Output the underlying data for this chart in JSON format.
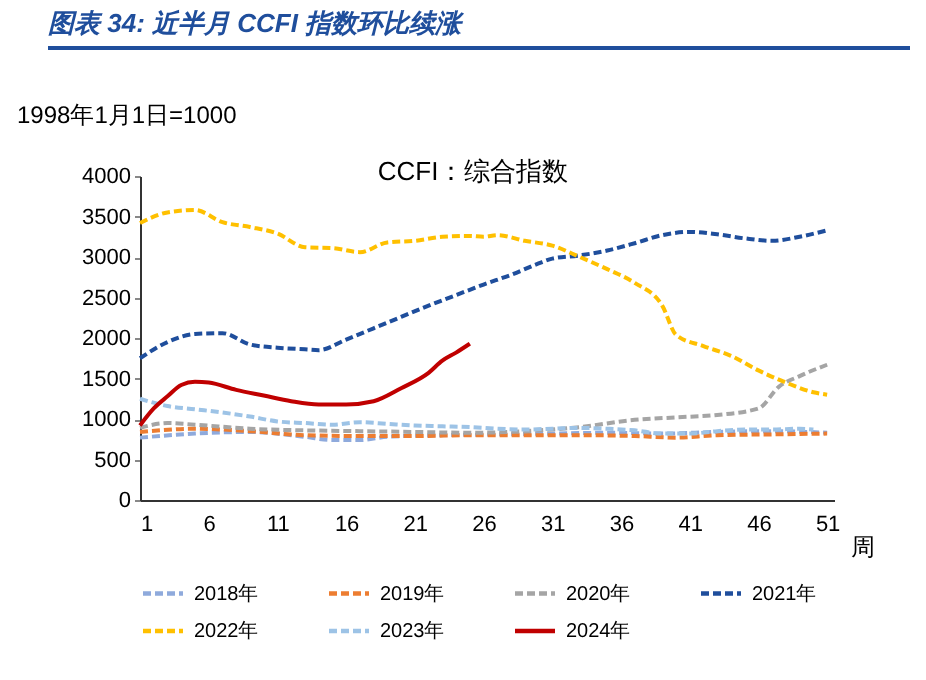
{
  "chart_data": {
    "type": "line",
    "title": "图表 34: 近半月 CCFI 指数环比续涨",
    "annotations": [
      "CCFI：综合指数"
    ],
    "ylabel": "1998年1月1日=1000",
    "xlabel": "周",
    "xlim": [
      1,
      51.5
    ],
    "xticks": [
      1,
      6,
      11,
      16,
      21,
      26,
      31,
      36,
      41,
      46,
      51
    ],
    "ylim": [
      0,
      4000
    ],
    "yticks": [
      0,
      500,
      1000,
      1500,
      2000,
      2500,
      3000,
      3500,
      4000
    ],
    "grid": false,
    "legend": "bottom",
    "marker": "none",
    "series": [
      {
        "name": "2018年",
        "color": "#8faadc",
        "line_style": "dashed",
        "x": [
          1,
          5,
          9,
          13,
          15,
          17,
          19,
          23,
          27,
          31,
          35,
          39,
          43,
          47,
          51
        ],
        "values": [
          770,
          820,
          840,
          780,
          740,
          740,
          780,
          800,
          810,
          820,
          830,
          820,
          840,
          850,
          830
        ]
      },
      {
        "name": "2019年",
        "color": "#ed7d31",
        "line_style": "dashed",
        "x": [
          1,
          5,
          9,
          13,
          17,
          21,
          25,
          29,
          33,
          37,
          40,
          43,
          47,
          51
        ],
        "values": [
          840,
          880,
          850,
          800,
          790,
          790,
          800,
          800,
          800,
          790,
          770,
          800,
          810,
          820
        ]
      },
      {
        "name": "2020年",
        "color": "#a5a5a5",
        "line_style": "dashed",
        "x": [
          1,
          3,
          5,
          9,
          13,
          17,
          21,
          25,
          29,
          33,
          37,
          40,
          43,
          46,
          47.5,
          49,
          51
        ],
        "values": [
          890,
          950,
          930,
          880,
          860,
          850,
          840,
          830,
          850,
          900,
          990,
          1020,
          1050,
          1130,
          1400,
          1530,
          1670
        ]
      },
      {
        "name": "2021年",
        "color": "#1f4e9c",
        "line_style": "dashed",
        "x": [
          1,
          3,
          5,
          7,
          9,
          11,
          13,
          14,
          16,
          18,
          20,
          22,
          24,
          26,
          28,
          30,
          31,
          33,
          35,
          37,
          39,
          41,
          43,
          45,
          47,
          49,
          51
        ],
        "values": [
          1750,
          1950,
          2050,
          2060,
          1920,
          1880,
          1860,
          1850,
          1980,
          2120,
          2260,
          2400,
          2530,
          2660,
          2780,
          2920,
          2980,
          3020,
          3080,
          3170,
          3270,
          3310,
          3280,
          3230,
          3200,
          3250,
          3330
        ]
      },
      {
        "name": "2022年",
        "color": "#ffc000",
        "line_style": "dashed",
        "x": [
          1,
          3,
          5,
          7,
          9,
          11,
          13,
          15,
          17,
          19,
          21,
          23,
          25,
          26,
          27,
          29,
          31,
          33,
          35,
          37,
          39,
          40,
          42,
          44,
          46,
          48,
          50,
          51
        ],
        "values": [
          3420,
          3550,
          3580,
          3430,
          3370,
          3290,
          3120,
          3110,
          3060,
          3180,
          3200,
          3250,
          3260,
          3250,
          3270,
          3200,
          3140,
          3000,
          2850,
          2680,
          2400,
          2040,
          1900,
          1780,
          1600,
          1450,
          1330,
          1300
        ]
      },
      {
        "name": "2023年",
        "color": "#9dc3e6",
        "line_style": "dashed",
        "x": [
          1,
          3,
          5,
          7,
          9,
          11,
          13,
          15,
          17,
          19,
          21,
          23,
          25,
          27,
          29,
          31,
          33,
          35,
          37,
          39,
          41,
          43,
          45,
          47,
          49,
          50
        ],
        "values": [
          1250,
          1160,
          1120,
          1080,
          1030,
          970,
          950,
          930,
          960,
          940,
          920,
          910,
          900,
          880,
          870,
          880,
          890,
          880,
          860,
          820,
          820,
          850,
          870,
          870,
          880,
          870
        ]
      },
      {
        "name": "2024年",
        "color": "#c00000",
        "line_style": "solid",
        "x": [
          1,
          2,
          3,
          4,
          5,
          6,
          8,
          10,
          12,
          14,
          16,
          18,
          20,
          22,
          23,
          24,
          25
        ],
        "values": [
          920,
          1130,
          1280,
          1420,
          1460,
          1450,
          1360,
          1290,
          1220,
          1180,
          1180,
          1220,
          1380,
          1570,
          1720,
          1820,
          1930
        ]
      }
    ]
  }
}
